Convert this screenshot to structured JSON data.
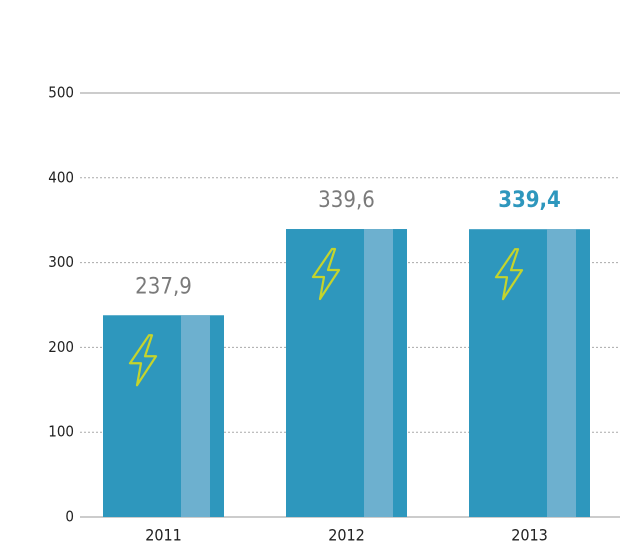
{
  "chart_data": {
    "type": "bar",
    "categories": [
      "2011",
      "2012",
      "2013"
    ],
    "values": [
      237.9,
      339.6,
      339.4
    ],
    "value_labels": [
      "237,9",
      "339,6",
      "339,4"
    ],
    "value_label_colors": [
      "#7a7a7a",
      "#7a7a7a",
      "#2e97bd"
    ],
    "value_label_bold": [
      false,
      false,
      true
    ],
    "color": "#2e97bd",
    "highlight_color": "#6db0cf",
    "icon_color": "#c5d42c",
    "ylim": [
      0,
      500
    ],
    "yticks": [
      0,
      100,
      200,
      300,
      400,
      500
    ],
    "grid": true
  }
}
